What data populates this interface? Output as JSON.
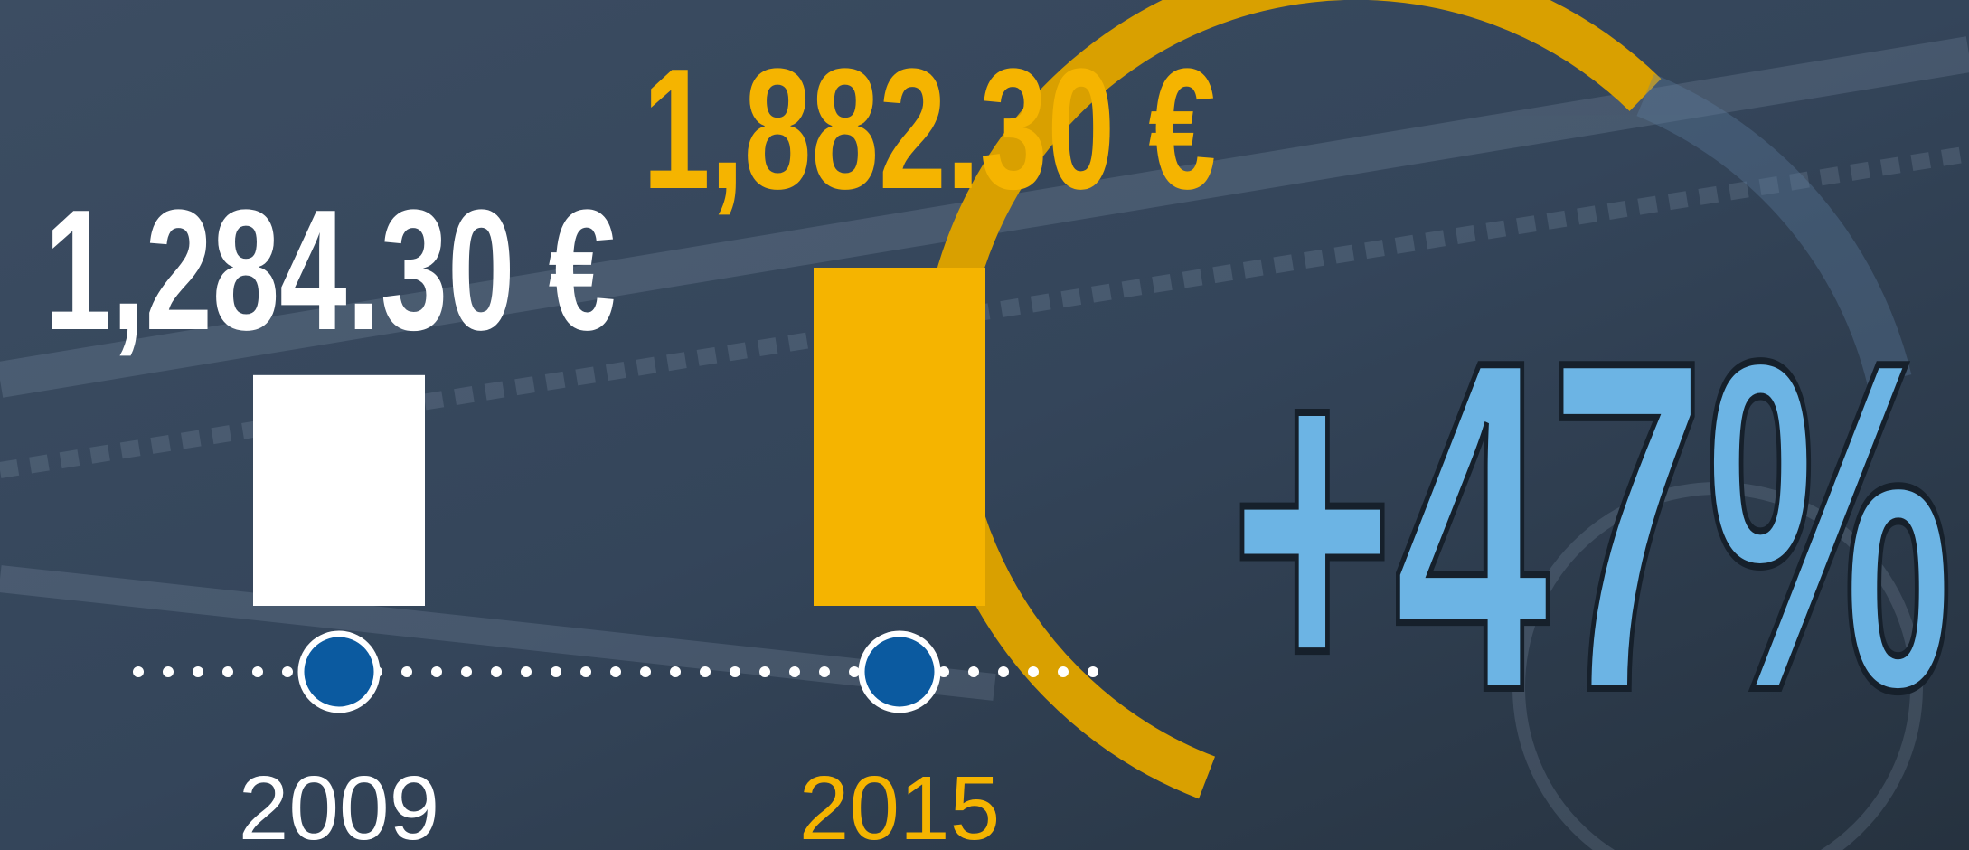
{
  "chart_data": {
    "type": "bar",
    "categories": [
      "2009",
      "2015"
    ],
    "values": [
      1284.3,
      1882.3
    ],
    "value_labels": [
      "1,284.30 €",
      "1,882.30 €"
    ],
    "colors": [
      "#ffffff",
      "#f5b400"
    ],
    "annotation": "+47%"
  }
}
